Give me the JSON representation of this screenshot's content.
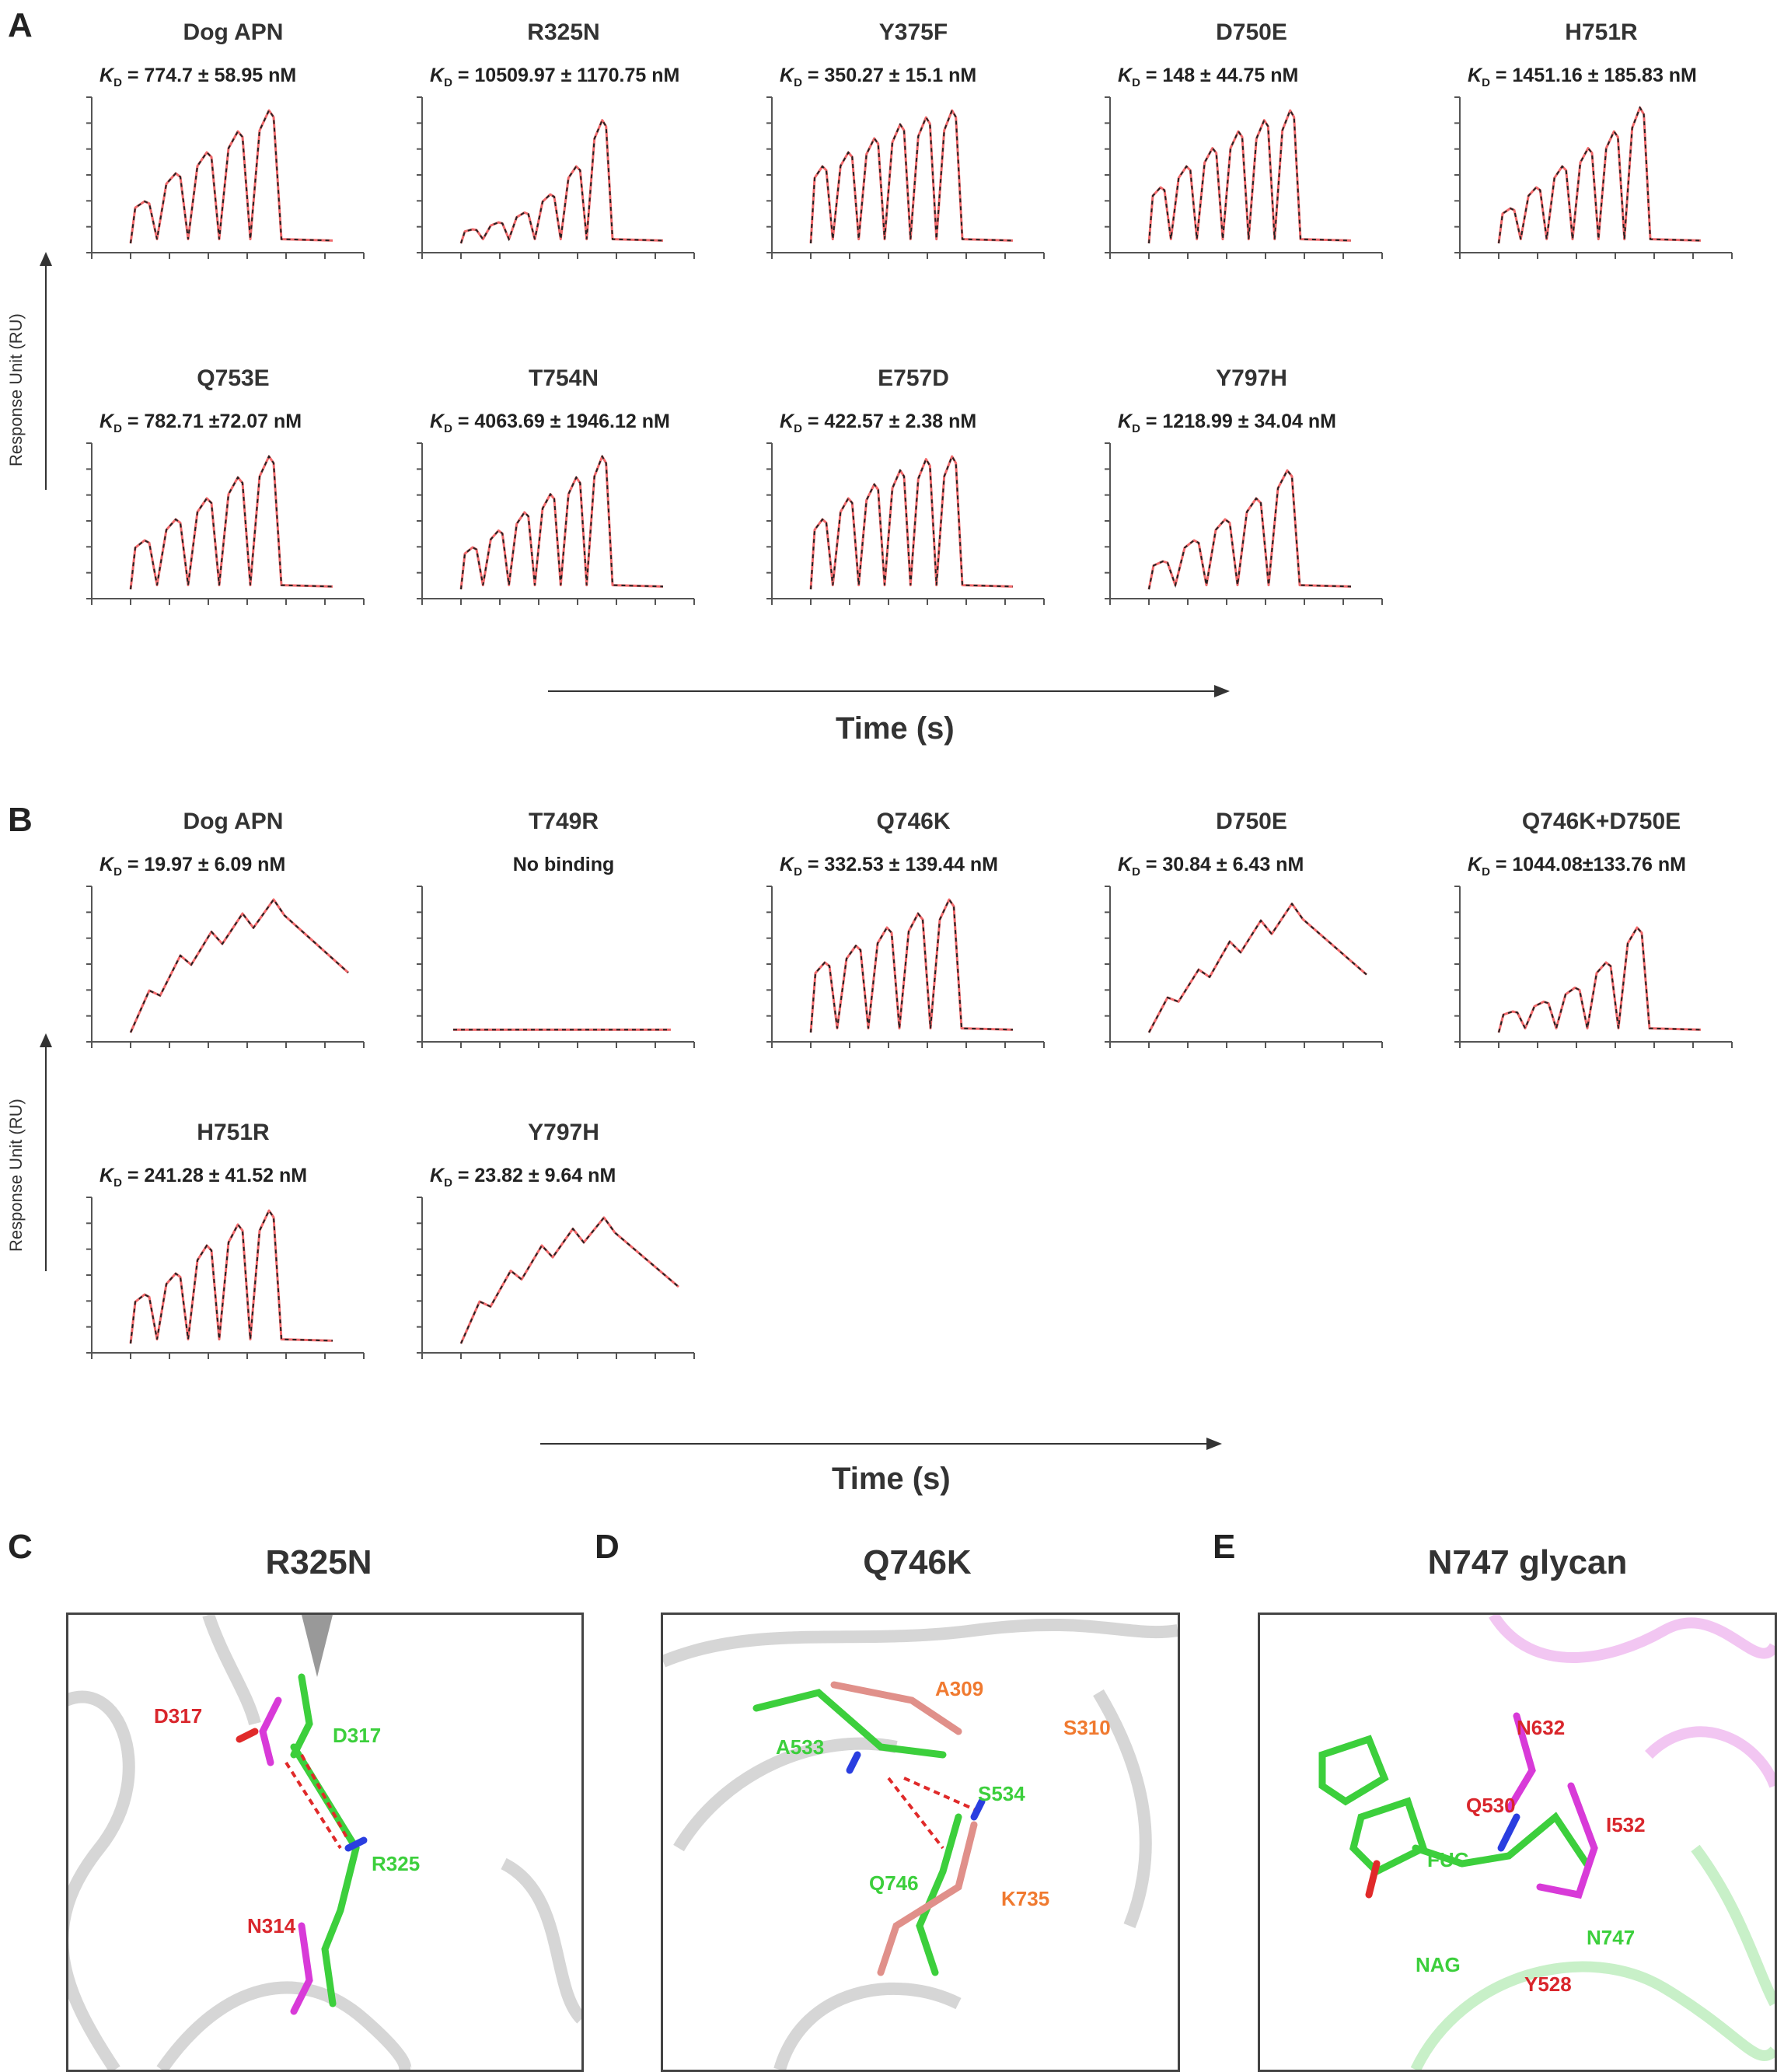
{
  "panels": {
    "A": "A",
    "B": "B",
    "C": "C",
    "D": "D",
    "E": "E"
  },
  "axis": {
    "ylabel": "Response Unit (RU)",
    "xlabel": "Time (s)",
    "kd_symbol": "K",
    "kd_sub": "D"
  },
  "colors": {
    "data": "#f0696b",
    "fit": "#222222",
    "green": "#3ccf3c",
    "magenta": "#d83ad8",
    "salmon": "#e0908a",
    "red_label": "#d9262c",
    "orange_label": "#f07a30"
  },
  "chart_data": [
    {
      "panel": "A",
      "type": "line",
      "title": "Dog APN",
      "kd": " = 774.7 ± 58.95 nM",
      "mode": "multi",
      "peaks": [
        0.3,
        0.5,
        0.65,
        0.8,
        0.95
      ]
    },
    {
      "panel": "A",
      "type": "line",
      "title": "R325N",
      "kd": " = 10509.97 ± 1170.75 nM",
      "mode": "multi",
      "peaks": [
        0.1,
        0.15,
        0.22,
        0.35,
        0.55,
        0.88
      ]
    },
    {
      "panel": "A",
      "type": "line",
      "title": "Y375F",
      "kd": " = 350.27 ± 15.1 nM",
      "mode": "multi",
      "peaks": [
        0.55,
        0.65,
        0.75,
        0.85,
        0.9,
        0.95
      ]
    },
    {
      "panel": "A",
      "type": "line",
      "title": "D750E",
      "kd": " = 148 ± 44.75 nM",
      "mode": "multi",
      "peaks": [
        0.4,
        0.55,
        0.68,
        0.8,
        0.88,
        0.95
      ]
    },
    {
      "panel": "A",
      "type": "line",
      "title": "H751R",
      "kd": " = 1451.16 ± 185.83 nM",
      "mode": "multi",
      "peaks": [
        0.25,
        0.4,
        0.55,
        0.68,
        0.8,
        0.97
      ]
    },
    {
      "panel": "A",
      "type": "line",
      "title": "Q753E",
      "kd": " = 782.71 ±72.07 nM",
      "mode": "multi",
      "peaks": [
        0.35,
        0.5,
        0.65,
        0.8,
        0.95
      ]
    },
    {
      "panel": "A",
      "type": "line",
      "title": "T754N",
      "kd": " = 4063.69 ± 1946.12 nM",
      "mode": "multi",
      "peaks": [
        0.3,
        0.42,
        0.55,
        0.68,
        0.8,
        0.95
      ]
    },
    {
      "panel": "A",
      "type": "line",
      "title": "E757D",
      "kd": " = 422.57 ± 2.38 nM",
      "mode": "multi",
      "peaks": [
        0.5,
        0.65,
        0.75,
        0.85,
        0.93,
        0.95
      ]
    },
    {
      "panel": "A",
      "type": "line",
      "title": "Y797H",
      "kd": " = 1218.99 ± 34.04 nM",
      "mode": "multi",
      "peaks": [
        0.2,
        0.35,
        0.5,
        0.65,
        0.85
      ]
    },
    {
      "panel": "B",
      "type": "line",
      "title": "Dog APN",
      "kd": " = 19.97 ± 6.09 nM",
      "mode": "single",
      "peaks": [
        0.3,
        0.55,
        0.72,
        0.85,
        0.95
      ]
    },
    {
      "panel": "B",
      "type": "line",
      "title": "T749R",
      "note": "No binding",
      "mode": "flat",
      "peaks": [
        0.02
      ]
    },
    {
      "panel": "B",
      "type": "line",
      "title": "Q746K",
      "kd": " = 332.53 ± 139.44 nM",
      "mode": "multi",
      "peaks": [
        0.5,
        0.62,
        0.75,
        0.85,
        0.95
      ]
    },
    {
      "panel": "B",
      "type": "line",
      "title": "D750E",
      "kd": " = 30.84 ± 6.43 nM",
      "mode": "single",
      "peaks": [
        0.25,
        0.45,
        0.65,
        0.8,
        0.92
      ]
    },
    {
      "panel": "B",
      "type": "line",
      "title": "Q746K+D750E",
      "kd": " = 1044.08±133.76 nM",
      "mode": "multi",
      "peaks": [
        0.15,
        0.22,
        0.32,
        0.5,
        0.75
      ]
    },
    {
      "panel": "B",
      "type": "line",
      "title": "H751R",
      "kd": " = 241.28 ± 41.52 nM",
      "mode": "multi",
      "peaks": [
        0.35,
        0.5,
        0.7,
        0.85,
        0.95
      ]
    },
    {
      "panel": "B",
      "type": "line",
      "title": "Y797H",
      "kd": " = 23.82 ± 9.64 nM",
      "mode": "single",
      "peaks": [
        0.3,
        0.52,
        0.7,
        0.82,
        0.9
      ]
    }
  ],
  "structures": {
    "C": {
      "title": "R325N",
      "labels": [
        "D317",
        "D317",
        "R325",
        "N314"
      ]
    },
    "D": {
      "title": "Q746K",
      "labels": [
        "A309",
        "S310",
        "A533",
        "S534",
        "Q746",
        "K735"
      ]
    },
    "E": {
      "title": "N747 glycan",
      "labels": [
        "N632",
        "Q530",
        "I532",
        "FUC",
        "N747",
        "NAG",
        "Y528"
      ]
    }
  }
}
